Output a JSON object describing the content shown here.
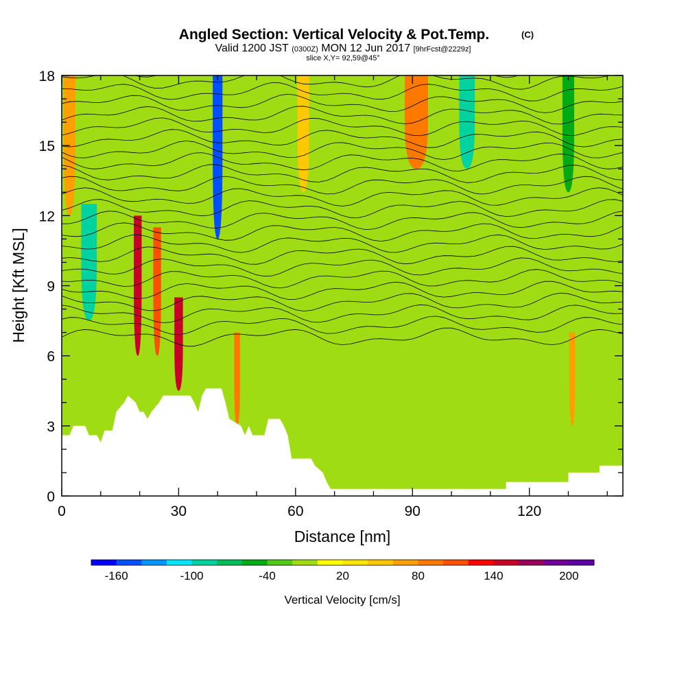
{
  "header": {
    "title": "Angled Section: Vertical Velocity & Pot.Temp.",
    "title_mark": "(C)",
    "valid_a": "Valid 1200 JST",
    "valid_z": "(0300Z)",
    "valid_b": "MON 12 Jun 2017",
    "valid_fcst": "[9hrFcst@2229z]",
    "slice": "slice X,Y= 92,59@45°"
  },
  "chart_data": {
    "type": "heatmap",
    "xlabel": "Distance [nm]",
    "ylabel": "Height [Kft MSL]",
    "xlim": [
      0,
      144
    ],
    "ylim": [
      0,
      18
    ],
    "x_ticks": [
      0,
      30,
      60,
      90,
      120
    ],
    "y_ticks": [
      0,
      3,
      6,
      9,
      12,
      15,
      18
    ],
    "colorbar": {
      "label": "Vertical Velocity [cm/s]",
      "range": [
        -180,
        220
      ],
      "step": 20,
      "tick_labels": [
        -160,
        -100,
        -40,
        20,
        80,
        140,
        200
      ],
      "colors": [
        "#0000ff",
        "#0050ff",
        "#0096ff",
        "#00e6ff",
        "#00d2a0",
        "#00be5a",
        "#00aa14",
        "#50c814",
        "#a0dc14",
        "#ffff00",
        "#ffe600",
        "#ffc800",
        "#ffa000",
        "#ff7800",
        "#ff5000",
        "#ff0000",
        "#c80028",
        "#96005a",
        "#6e0096",
        "#5a00a0"
      ]
    },
    "vertical_velocity_bands": [
      {
        "x": 2,
        "w": 3,
        "top": 18,
        "bottom": 12,
        "value": 60
      },
      {
        "x": 7,
        "w": 4,
        "top": 12.5,
        "bottom": 7.5,
        "value": -100
      },
      {
        "x": 19.5,
        "w": 2,
        "top": 12,
        "bottom": 6,
        "value": 150
      },
      {
        "x": 24.5,
        "w": 2,
        "top": 11.5,
        "bottom": 6,
        "value": 100
      },
      {
        "x": 30,
        "w": 2.2,
        "top": 8.5,
        "bottom": 4.5,
        "value": 150
      },
      {
        "x": 40,
        "w": 2.5,
        "top": 18,
        "bottom": 11,
        "value": -160
      },
      {
        "x": 45,
        "w": 1.5,
        "top": 7,
        "bottom": 3,
        "value": 80
      },
      {
        "x": 62,
        "w": 3,
        "top": 18,
        "bottom": 13,
        "value": 40
      },
      {
        "x": 91,
        "w": 6,
        "top": 18,
        "bottom": 14,
        "value": 80
      },
      {
        "x": 104,
        "w": 4,
        "top": 18,
        "bottom": 14,
        "value": -100
      },
      {
        "x": 130,
        "w": 3,
        "top": 18,
        "bottom": 13,
        "value": -60
      },
      {
        "x": 131,
        "w": 1.5,
        "top": 7,
        "bottom": 3,
        "value": 60
      }
    ],
    "terrain": [
      [
        0,
        2.6
      ],
      [
        2,
        2.6
      ],
      [
        3,
        3
      ],
      [
        6,
        3
      ],
      [
        7,
        2.6
      ],
      [
        9,
        2.6
      ],
      [
        10,
        2.3
      ],
      [
        11,
        2.8
      ],
      [
        13,
        2.8
      ],
      [
        14,
        3.6
      ],
      [
        16,
        4
      ],
      [
        17,
        4.3
      ],
      [
        19,
        4
      ],
      [
        20,
        3.6
      ],
      [
        21,
        3.6
      ],
      [
        22,
        3.3
      ],
      [
        23,
        3.6
      ],
      [
        25,
        4
      ],
      [
        26,
        4.3
      ],
      [
        33,
        4.3
      ],
      [
        34,
        4
      ],
      [
        35,
        3.6
      ],
      [
        36,
        4.3
      ],
      [
        37,
        4.6
      ],
      [
        41,
        4.6
      ],
      [
        42,
        4
      ],
      [
        43,
        3.3
      ],
      [
        46,
        3
      ],
      [
        47,
        2.6
      ],
      [
        48,
        3
      ],
      [
        49,
        2.6
      ],
      [
        52,
        2.6
      ],
      [
        53,
        3.3
      ],
      [
        56,
        3.3
      ],
      [
        57,
        3
      ],
      [
        58,
        2.6
      ],
      [
        59,
        1.6
      ],
      [
        64,
        1.6
      ],
      [
        65,
        1.3
      ],
      [
        67,
        1
      ],
      [
        68,
        0.6
      ],
      [
        69,
        0.3
      ],
      [
        114,
        0.3
      ],
      [
        114,
        0.6
      ],
      [
        130,
        0.6
      ],
      [
        130,
        1
      ],
      [
        138,
        1
      ],
      [
        138,
        1.3
      ],
      [
        144,
        1.3
      ]
    ],
    "theta_contours_every_kft": 0.5,
    "theta_contour_base_kft": 6.8
  }
}
